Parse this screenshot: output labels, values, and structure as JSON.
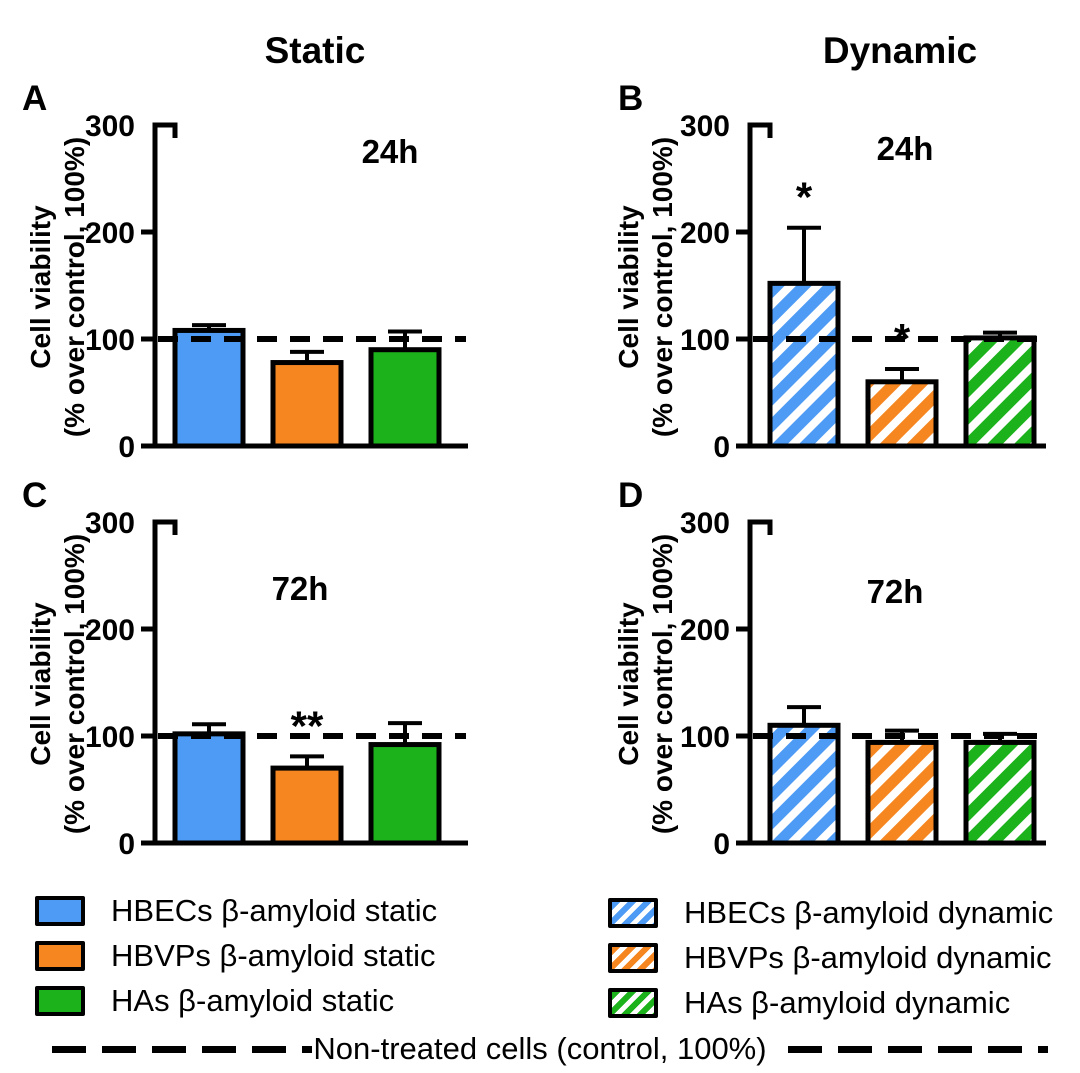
{
  "headers": {
    "left": "Static",
    "right": "Dynamic"
  },
  "axis": {
    "y_label_line1": "Cell viability",
    "y_label_line2": "(% over control, 100%)",
    "ticks": [
      0,
      100,
      200,
      300
    ]
  },
  "colors": {
    "hbecs_blue": "#4D9BF5",
    "hbvps_orange": "#F6861F",
    "has_green": "#1CB21C",
    "axis_black": "#000000"
  },
  "chart_data": [
    {
      "id": "A",
      "panel_label": "A",
      "type": "bar",
      "group": "Static",
      "title": "24h",
      "ylabel": "Cell viability (% over control, 100%)",
      "ylim": [
        0,
        300
      ],
      "yticks": [
        0,
        100,
        200,
        300
      ],
      "bar_style": "solid",
      "categories": [
        "HBECs β-amyloid static",
        "HBVPs β-amyloid static",
        "HAs β-amyloid static"
      ],
      "series_colors": [
        "#4D9BF5",
        "#F6861F",
        "#1CB21C"
      ],
      "values": [
        108,
        78,
        90
      ],
      "errors": [
        5,
        10,
        17
      ],
      "significance": [
        "",
        "",
        ""
      ],
      "control_line": 100
    },
    {
      "id": "B",
      "panel_label": "B",
      "type": "bar",
      "group": "Dynamic",
      "title": "24h",
      "ylabel": "Cell viability (% over control, 100%)",
      "ylim": [
        0,
        300
      ],
      "yticks": [
        0,
        100,
        200,
        300
      ],
      "bar_style": "hatched",
      "categories": [
        "HBECs β-amyloid dynamic",
        "HBVPs β-amyloid dynamic",
        "HAs β-amyloid dynamic"
      ],
      "series_colors": [
        "#4D9BF5",
        "#F6861F",
        "#1CB21C"
      ],
      "values": [
        152,
        60,
        101
      ],
      "errors": [
        52,
        12,
        5
      ],
      "significance": [
        "*",
        "*",
        ""
      ],
      "control_line": 100
    },
    {
      "id": "C",
      "panel_label": "C",
      "type": "bar",
      "group": "Static",
      "title": "72h",
      "ylabel": "Cell viability (% over control, 100%)",
      "ylim": [
        0,
        300
      ],
      "yticks": [
        0,
        100,
        200,
        300
      ],
      "bar_style": "solid",
      "categories": [
        "HBECs β-amyloid static",
        "HBVPs β-amyloid static",
        "HAs β-amyloid static"
      ],
      "series_colors": [
        "#4D9BF5",
        "#F6861F",
        "#1CB21C"
      ],
      "values": [
        102,
        70,
        92
      ],
      "errors": [
        9,
        11,
        20
      ],
      "significance": [
        "",
        "**",
        ""
      ],
      "control_line": 100
    },
    {
      "id": "D",
      "panel_label": "D",
      "type": "bar",
      "group": "Dynamic",
      "title": "72h",
      "ylabel": "Cell viability (% over control, 100%)",
      "ylim": [
        0,
        300
      ],
      "yticks": [
        0,
        100,
        200,
        300
      ],
      "bar_style": "hatched",
      "categories": [
        "HBECs β-amyloid dynamic",
        "HBVPs β-amyloid dynamic",
        "HAs β-amyloid dynamic"
      ],
      "series_colors": [
        "#4D9BF5",
        "#F6861F",
        "#1CB21C"
      ],
      "values": [
        110,
        94,
        94
      ],
      "errors": [
        17,
        11,
        8
      ],
      "significance": [
        "",
        "",
        ""
      ],
      "control_line": 100
    }
  ],
  "legend": {
    "static_items": [
      {
        "label": "HBECs β-amyloid static",
        "color": "#4D9BF5",
        "pattern": "solid"
      },
      {
        "label": "HBVPs β-amyloid static",
        "color": "#F6861F",
        "pattern": "solid"
      },
      {
        "label": "HAs β-amyloid static",
        "color": "#1CB21C",
        "pattern": "solid"
      }
    ],
    "dynamic_items": [
      {
        "label": "HBECs β-amyloid dynamic",
        "color": "#4D9BF5",
        "pattern": "hatched"
      },
      {
        "label": "HBVPs β-amyloid dynamic",
        "color": "#F6861F",
        "pattern": "hatched"
      },
      {
        "label": "HAs β-amyloid dynamic",
        "color": "#1CB21C",
        "pattern": "hatched"
      }
    ],
    "control_label": "Non-treated cells (control, 100%)"
  }
}
